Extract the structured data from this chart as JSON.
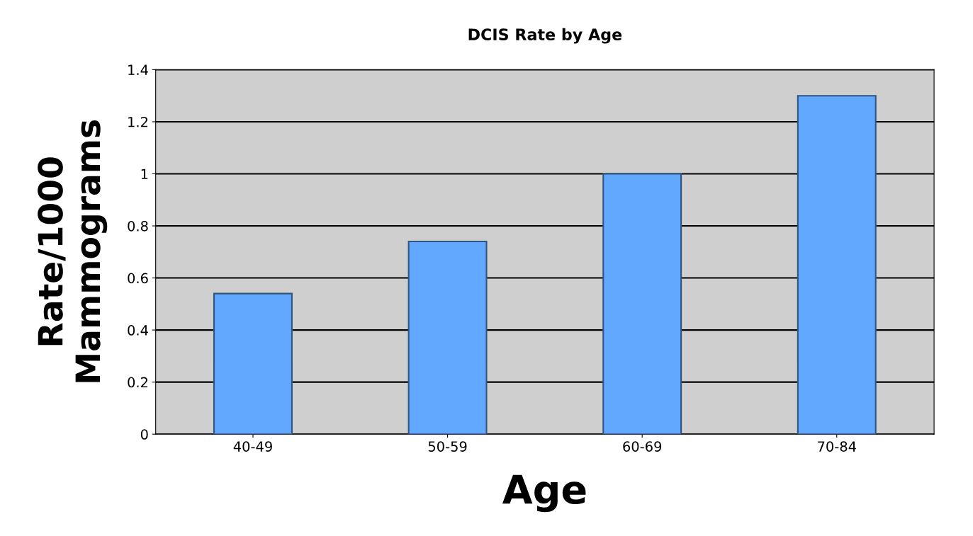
{
  "chart_data": {
    "type": "bar",
    "title": "DCIS Rate by Age",
    "xlabel": "Age",
    "ylabel": "Rate/1000\nMammograms",
    "categories": [
      "40-49",
      "50-59",
      "60-69",
      "70-84"
    ],
    "values": [
      0.54,
      0.74,
      1.0,
      1.3
    ],
    "color": "#63a8ff",
    "ylim": [
      0,
      1.4
    ],
    "yticks": [
      0,
      0.2,
      0.4,
      0.6,
      0.8,
      1,
      1.2,
      1.4
    ],
    "grid": "y"
  }
}
